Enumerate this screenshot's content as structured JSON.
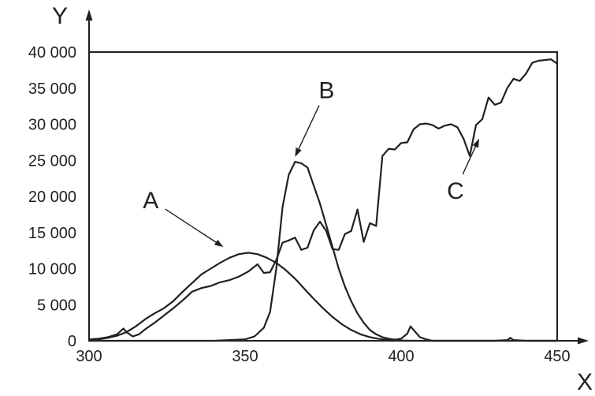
{
  "chart_data": {
    "type": "line",
    "title": "",
    "xlabel": "X",
    "ylabel": "Y",
    "xlim": [
      300,
      450
    ],
    "ylim": [
      0,
      40000
    ],
    "xticks": [
      300,
      350,
      400,
      450
    ],
    "yticks": [
      0,
      5000,
      10000,
      15000,
      20000,
      25000,
      30000,
      35000,
      40000
    ],
    "xtick_labels": [
      "300",
      "350",
      "400",
      "450"
    ],
    "ytick_labels": [
      "0",
      "5 000",
      "10 000",
      "15 000",
      "20 000",
      "25 000",
      "30 000",
      "35 000",
      "40 000"
    ],
    "grid": false,
    "legend": "none",
    "series": [
      {
        "name": "A",
        "x": [
          300,
          303,
          306,
          309,
          312,
          315,
          318,
          321,
          324,
          327,
          330,
          333,
          336,
          339,
          342,
          345,
          348,
          351,
          354,
          357,
          360,
          363,
          366,
          369,
          372,
          375,
          378,
          381,
          384,
          387,
          390,
          393,
          396,
          399,
          402,
          405,
          408,
          411,
          414,
          420,
          430,
          440,
          450
        ],
        "y": [
          0,
          200,
          400,
          700,
          1200,
          2000,
          3000,
          3800,
          4500,
          5500,
          6800,
          8000,
          9200,
          10000,
          10800,
          11500,
          12000,
          12200,
          12000,
          11500,
          10800,
          9800,
          8600,
          7200,
          5800,
          4500,
          3300,
          2300,
          1500,
          900,
          500,
          250,
          100,
          50,
          20,
          0,
          0,
          0,
          0,
          0,
          0,
          0,
          0
        ]
      },
      {
        "name": "B",
        "x": [
          300,
          320,
          340,
          350,
          353,
          356,
          358,
          360,
          362,
          364,
          366,
          368,
          370,
          372,
          374,
          376,
          378,
          380,
          382,
          384,
          386,
          388,
          390,
          392,
          394,
          396,
          398,
          400,
          402,
          403,
          404,
          406,
          408,
          410,
          415,
          420,
          430,
          434,
          435,
          436,
          440,
          450
        ],
        "y": [
          0,
          0,
          0,
          200,
          600,
          1800,
          4000,
          10000,
          18500,
          23000,
          24800,
          24600,
          24000,
          21500,
          19000,
          16000,
          13000,
          10000,
          7500,
          5500,
          3800,
          2500,
          1500,
          900,
          500,
          300,
          150,
          300,
          1000,
          2000,
          1500,
          500,
          200,
          0,
          0,
          0,
          0,
          100,
          400,
          100,
          0,
          0
        ]
      },
      {
        "name": "C",
        "x": [
          300,
          303,
          306,
          309,
          311,
          312,
          314,
          316,
          318,
          321,
          324,
          327,
          330,
          333,
          336,
          339,
          342,
          345,
          348,
          351,
          354,
          356,
          358,
          360,
          362,
          364,
          366,
          368,
          370,
          372,
          374,
          376,
          378,
          380,
          382,
          384,
          386,
          388,
          390,
          392,
          394,
          396,
          398,
          400,
          402,
          404,
          406,
          408,
          410,
          412,
          414,
          416,
          418,
          420,
          422,
          424,
          426,
          428,
          430,
          432,
          434,
          436,
          438,
          440,
          442,
          444,
          446,
          448,
          450
        ],
        "y": [
          200,
          300,
          500,
          900,
          1700,
          1200,
          600,
          900,
          1600,
          2500,
          3500,
          4500,
          5600,
          6800,
          7300,
          7600,
          8100,
          8400,
          8900,
          9600,
          10600,
          9400,
          9500,
          11200,
          13600,
          13900,
          14300,
          12600,
          12900,
          15300,
          16500,
          15200,
          12700,
          12600,
          14800,
          15200,
          18200,
          13700,
          16300,
          15900,
          25600,
          26600,
          26500,
          27400,
          27500,
          29300,
          30000,
          30100,
          29900,
          29400,
          29800,
          30000,
          29600,
          28000,
          25600,
          29900,
          30700,
          33700,
          32700,
          33000,
          35000,
          36300,
          36000,
          37000,
          38500,
          38800,
          38900,
          39000,
          38400
        ]
      }
    ],
    "annotations": [
      {
        "label": "A",
        "series": "A",
        "x": 343,
        "y": 13000
      },
      {
        "label": "B",
        "series": "B",
        "x": 366,
        "y": 25500
      },
      {
        "label": "C",
        "series": "C",
        "x": 425,
        "y": 28000
      }
    ]
  }
}
